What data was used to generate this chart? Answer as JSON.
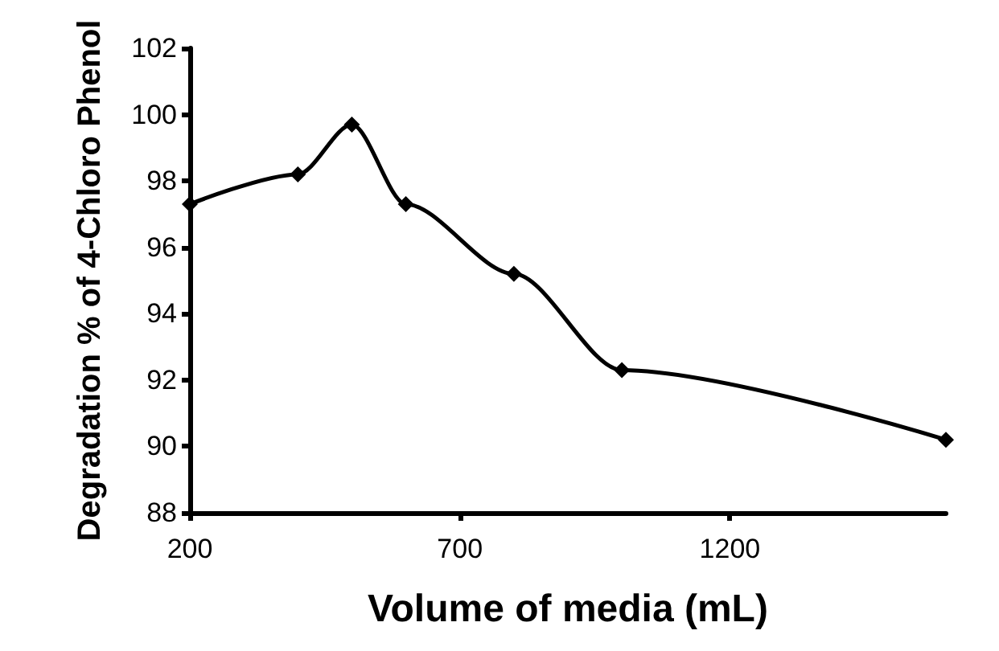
{
  "chart_data": {
    "type": "line",
    "xlabel": "Volume of media (mL)",
    "ylabel": "Degradation % of 4-Chloro Phenol",
    "x": [
      200,
      400,
      500,
      600,
      800,
      1000,
      1600
    ],
    "series": [
      {
        "color": "#000000",
        "values": [
          97.3,
          98.2,
          99.7,
          97.3,
          95.2,
          92.3,
          90.2
        ]
      }
    ],
    "xlim": [
      200,
      1600
    ],
    "xticks": [
      200,
      700,
      1200
    ],
    "ylim": [
      88,
      102
    ],
    "yticks": [
      88,
      90,
      92,
      94,
      96,
      98,
      100,
      102
    ],
    "grid": false,
    "marker": "diamond",
    "line_style": "solid"
  }
}
